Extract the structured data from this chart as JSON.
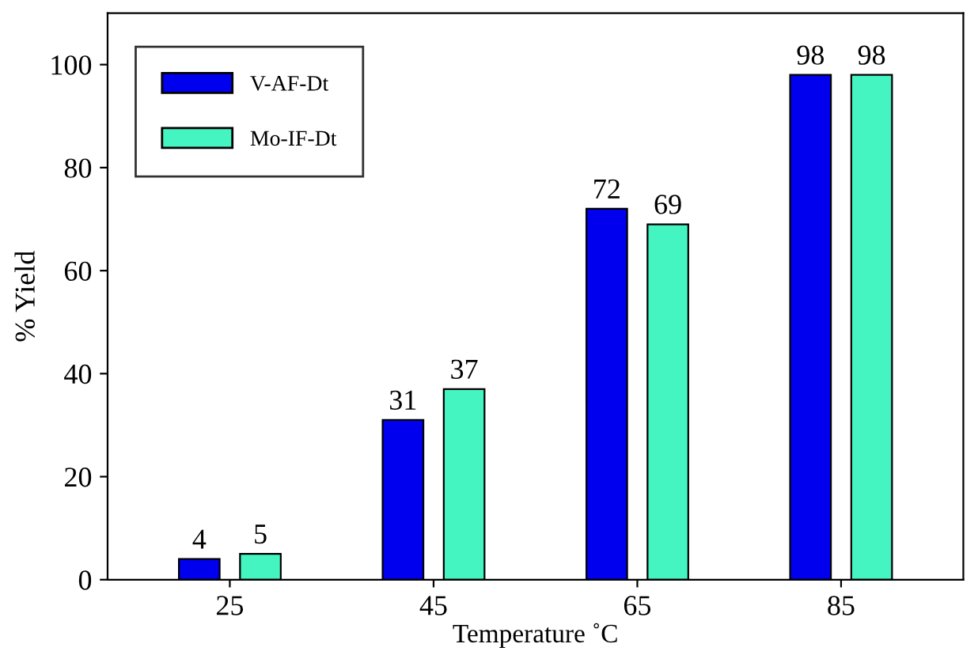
{
  "chart_data": {
    "type": "bar",
    "xlabel": "Temperature ˚C",
    "ylabel": "% Yield",
    "categories": [
      "25",
      "45",
      "65",
      "85"
    ],
    "series": [
      {
        "name": "V-AF-Dt",
        "color": "#0000ee",
        "values": [
          4,
          31,
          72,
          98
        ]
      },
      {
        "name": "Mo-IF-Dt",
        "color": "#44f5c2",
        "values": [
          5,
          37,
          69,
          98
        ]
      }
    ],
    "ylim": [
      0,
      110
    ],
    "yticks": [
      0,
      20,
      40,
      60,
      80,
      100
    ],
    "grid": false,
    "legend": "top left",
    "data_labels": true
  }
}
